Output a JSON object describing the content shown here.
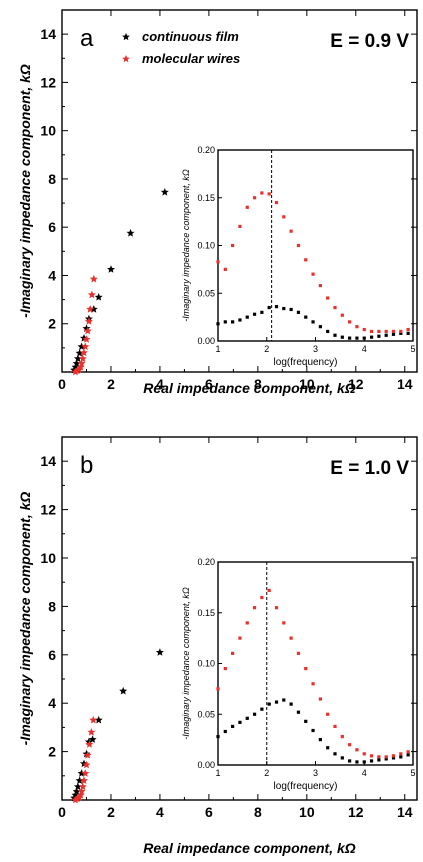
{
  "legend": {
    "continuous_label": "continuous film",
    "wires_label": "molecular wires"
  },
  "colors": {
    "continuous": "#000000",
    "wires": "#e8302c"
  },
  "chart_data": [
    {
      "type": "scatter",
      "panel_label": "a",
      "annotation": "E = 0.9 V",
      "xlabel": "Real impedance component, kΩ",
      "ylabel": "-Imaginary impedance component, kΩ",
      "xlim": [
        0,
        14.5
      ],
      "ylim": [
        0,
        15
      ],
      "xticks": [
        "0",
        "2",
        "4",
        "6",
        "8",
        "10",
        "12",
        "14"
      ],
      "yticks": [
        "2",
        "4",
        "6",
        "8",
        "10",
        "12",
        "14"
      ],
      "series": [
        {
          "name": "continuous film",
          "x": [
            0.5,
            0.55,
            0.6,
            0.65,
            0.72,
            0.8,
            0.9,
            1.0,
            1.1,
            1.3,
            1.5,
            2.0,
            2.8,
            4.2
          ],
          "y": [
            0.08,
            0.2,
            0.35,
            0.55,
            0.78,
            1.05,
            1.4,
            1.8,
            2.2,
            2.6,
            3.1,
            4.25,
            5.75,
            7.45
          ]
        },
        {
          "name": "molecular wires",
          "x": [
            0.55,
            0.62,
            0.7,
            0.76,
            0.8,
            0.85,
            0.9,
            0.95,
            1.0,
            1.05,
            1.1,
            1.15,
            1.22,
            1.3
          ],
          "y": [
            0.0,
            0.05,
            0.1,
            0.2,
            0.35,
            0.55,
            0.8,
            1.05,
            1.35,
            1.7,
            2.1,
            2.6,
            3.2,
            3.85
          ]
        }
      ],
      "inset": {
        "xlabel": "log(frequency)",
        "ylabel": "-Imaginary impedance component, kΩ",
        "xlim": [
          1,
          5
        ],
        "ylim": [
          0,
          0.2
        ],
        "xticks": [
          "1",
          "2",
          "3",
          "4",
          "5"
        ],
        "yticks": [
          "0.00",
          "0.05",
          "0.10",
          "0.15",
          "0.20"
        ],
        "vline_x": 2.1,
        "series": [
          {
            "name": "continuous film",
            "x": [
              1.0,
              1.15,
              1.3,
              1.45,
              1.6,
              1.75,
              1.9,
              2.05,
              2.2,
              2.35,
              2.5,
              2.65,
              2.8,
              2.95,
              3.1,
              3.25,
              3.4,
              3.55,
              3.7,
              3.85,
              4.0,
              4.15,
              4.3,
              4.45,
              4.6,
              4.75,
              4.9
            ],
            "y": [
              0.018,
              0.02,
              0.02,
              0.022,
              0.025,
              0.028,
              0.03,
              0.035,
              0.036,
              0.034,
              0.033,
              0.03,
              0.025,
              0.02,
              0.015,
              0.01,
              0.006,
              0.004,
              0.003,
              0.003,
              0.003,
              0.004,
              0.005,
              0.006,
              0.007,
              0.008,
              0.008
            ]
          },
          {
            "name": "molecular wires",
            "x": [
              1.0,
              1.15,
              1.3,
              1.45,
              1.6,
              1.75,
              1.9,
              2.05,
              2.2,
              2.35,
              2.5,
              2.65,
              2.8,
              2.95,
              3.1,
              3.25,
              3.4,
              3.55,
              3.7,
              3.85,
              4.0,
              4.15,
              4.3,
              4.45,
              4.6,
              4.75,
              4.9
            ],
            "y": [
              0.083,
              0.075,
              0.1,
              0.12,
              0.14,
              0.15,
              0.155,
              0.154,
              0.145,
              0.13,
              0.115,
              0.1,
              0.085,
              0.07,
              0.058,
              0.045,
              0.035,
              0.027,
              0.02,
              0.015,
              0.012,
              0.01,
              0.01,
              0.01,
              0.01,
              0.01,
              0.012
            ]
          }
        ]
      }
    },
    {
      "type": "scatter",
      "panel_label": "b",
      "annotation": "E = 1.0 V",
      "xlabel": "Real impedance component, kΩ",
      "ylabel": "-Imaginary impedance component, kΩ",
      "xlim": [
        0,
        14.5
      ],
      "ylim": [
        0,
        15
      ],
      "xticks": [
        "0",
        "2",
        "4",
        "6",
        "8",
        "10",
        "12",
        "14"
      ],
      "yticks": [
        "2",
        "4",
        "6",
        "8",
        "10",
        "12",
        "14"
      ],
      "series": [
        {
          "name": "continuous film",
          "x": [
            0.5,
            0.55,
            0.6,
            0.65,
            0.72,
            0.8,
            0.9,
            1.0,
            1.1,
            1.25,
            1.5,
            2.5,
            4.0
          ],
          "y": [
            0.08,
            0.2,
            0.35,
            0.55,
            0.8,
            1.1,
            1.5,
            1.9,
            2.4,
            2.5,
            3.3,
            4.5,
            6.1
          ]
        },
        {
          "name": "molecular wires",
          "x": [
            0.55,
            0.62,
            0.7,
            0.76,
            0.8,
            0.85,
            0.9,
            0.95,
            1.0,
            1.05,
            1.12,
            1.2,
            1.28
          ],
          "y": [
            0.0,
            0.05,
            0.1,
            0.2,
            0.35,
            0.55,
            0.8,
            1.1,
            1.45,
            1.85,
            2.3,
            2.8,
            3.3
          ]
        }
      ],
      "inset": {
        "xlabel": "log(frequency)",
        "ylabel": "-Imaginary impedance component, kΩ",
        "xlim": [
          1,
          5
        ],
        "ylim": [
          0,
          0.2
        ],
        "xticks": [
          "1",
          "2",
          "3",
          "4",
          "5"
        ],
        "yticks": [
          "0.00",
          "0.05",
          "0.10",
          "0.15",
          "0.20"
        ],
        "vline_x": 2.0,
        "series": [
          {
            "name": "continuous film",
            "x": [
              1.0,
              1.15,
              1.3,
              1.45,
              1.6,
              1.75,
              1.9,
              2.05,
              2.2,
              2.35,
              2.5,
              2.65,
              2.8,
              2.95,
              3.1,
              3.25,
              3.4,
              3.55,
              3.7,
              3.85,
              4.0,
              4.15,
              4.3,
              4.45,
              4.6,
              4.75,
              4.9
            ],
            "y": [
              0.028,
              0.033,
              0.038,
              0.042,
              0.046,
              0.05,
              0.055,
              0.06,
              0.062,
              0.064,
              0.06,
              0.052,
              0.043,
              0.034,
              0.025,
              0.017,
              0.011,
              0.007,
              0.004,
              0.003,
              0.003,
              0.004,
              0.005,
              0.006,
              0.007,
              0.008,
              0.01
            ]
          },
          {
            "name": "molecular wires",
            "x": [
              1.0,
              1.15,
              1.3,
              1.45,
              1.6,
              1.75,
              1.9,
              2.05,
              2.2,
              2.35,
              2.5,
              2.65,
              2.8,
              2.95,
              3.1,
              3.25,
              3.4,
              3.55,
              3.7,
              3.85,
              4.0,
              4.15,
              4.3,
              4.45,
              4.6,
              4.75,
              4.9
            ],
            "y": [
              0.075,
              0.095,
              0.11,
              0.125,
              0.14,
              0.155,
              0.165,
              0.172,
              0.155,
              0.14,
              0.125,
              0.11,
              0.095,
              0.08,
              0.065,
              0.05,
              0.038,
              0.028,
              0.02,
              0.015,
              0.011,
              0.009,
              0.008,
              0.008,
              0.009,
              0.011,
              0.013
            ]
          }
        ]
      }
    }
  ]
}
